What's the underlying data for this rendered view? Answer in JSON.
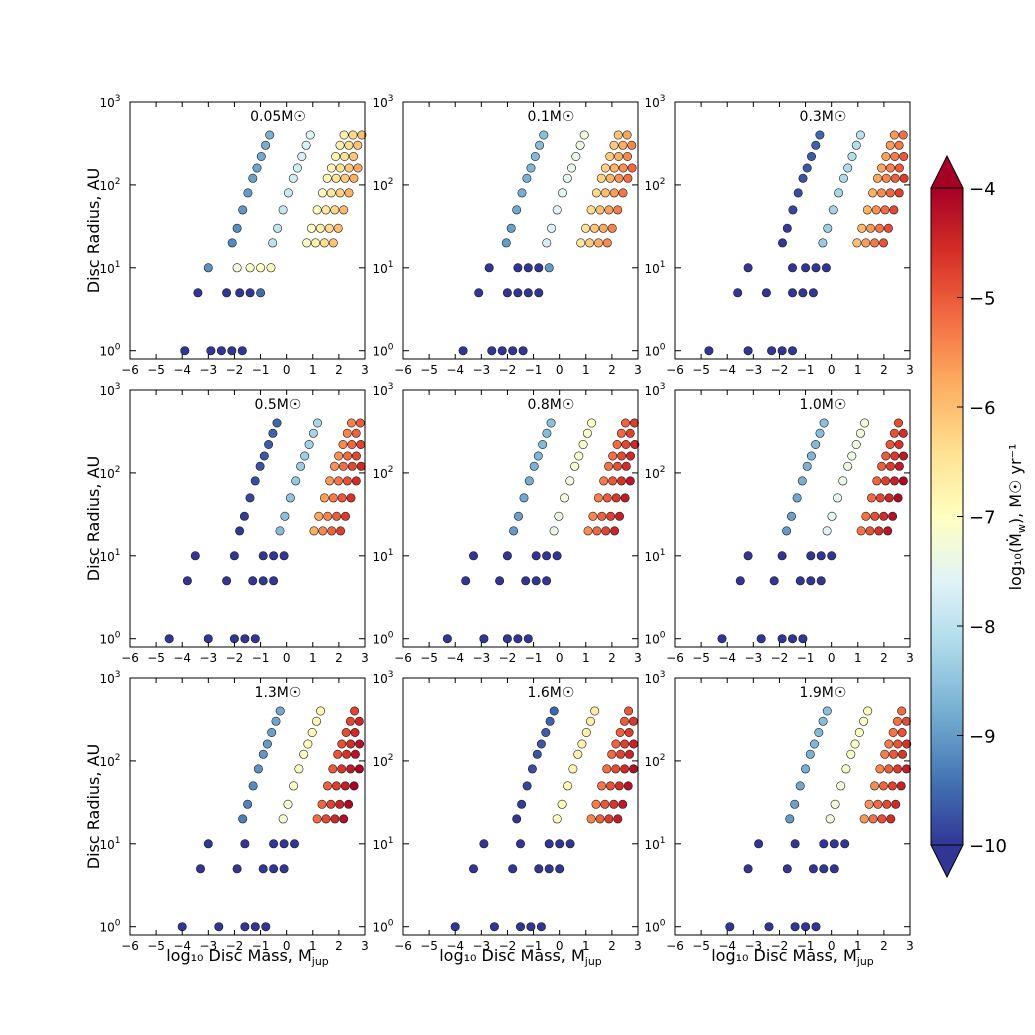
{
  "figure": {
    "x_axis_label": "log₁₀ Disc Mass, M",
    "x_axis_label_sub": "jup",
    "y_axis_label": "Disc Radius, AU"
  },
  "colorbar": {
    "label": "log₁₀(Ṁ",
    "label_sub": "w",
    "label_units": "), M☉ yr⁻¹",
    "min": -10,
    "max": -4,
    "ticks": [
      -10,
      -9,
      -8,
      -7,
      -6,
      -5,
      -4
    ],
    "tick_labels": [
      "−10",
      "−9",
      "−8",
      "−7",
      "−6",
      "−5",
      "−4"
    ],
    "colors": [
      "#313695",
      "#4575b4",
      "#74add1",
      "#abd9e9",
      "#e0f3f8",
      "#ffffbf",
      "#fee090",
      "#fdae61",
      "#f46d43",
      "#d73027",
      "#a50026"
    ]
  },
  "chart_data": [
    {
      "type": "scatter",
      "title": "0.05M☉",
      "shift": 0.0,
      "levels": [
        -9.2,
        -8.0,
        -7.1
      ],
      "low": [
        [
          -3.9,
          1,
          -10
        ],
        [
          -2.9,
          1,
          -10
        ],
        [
          -2.5,
          1,
          -10
        ],
        [
          -2.1,
          1,
          -10
        ],
        [
          -1.7,
          1,
          -10
        ],
        [
          -3.4,
          5,
          -10
        ],
        [
          -2.3,
          5,
          -10
        ],
        [
          -1.8,
          5,
          -10
        ],
        [
          -1.4,
          5,
          -10
        ],
        [
          -1.0,
          5,
          -9.5
        ],
        [
          -3.0,
          10,
          -9.1
        ],
        [
          -1.9,
          10,
          -7.3
        ],
        [
          -1.4,
          10,
          -7.1
        ],
        [
          -1.0,
          10,
          -7.0
        ],
        [
          -0.6,
          10,
          -6.9
        ]
      ]
    },
    {
      "type": "scatter",
      "title": "0.1M☉",
      "shift": 0.1,
      "levels": [
        -9.0,
        -7.7,
        -6.5
      ],
      "low": [
        [
          -3.7,
          1,
          -10
        ],
        [
          -2.6,
          1,
          -10
        ],
        [
          -2.2,
          1,
          -10
        ],
        [
          -1.8,
          1,
          -10
        ],
        [
          -1.4,
          1,
          -10
        ],
        [
          -3.1,
          5,
          -10
        ],
        [
          -2.0,
          5,
          -10
        ],
        [
          -1.6,
          5,
          -10
        ],
        [
          -1.2,
          5,
          -10
        ],
        [
          -0.8,
          5,
          -10
        ],
        [
          -2.7,
          10,
          -10
        ],
        [
          -1.6,
          10,
          -10
        ],
        [
          -1.2,
          10,
          -10
        ],
        [
          -0.8,
          10,
          -10
        ],
        [
          -0.4,
          10,
          -9.0
        ]
      ]
    },
    {
      "type": "scatter",
      "title": "0.3M☉",
      "shift": 0.5,
      "levels": [
        -10,
        -8.4,
        -6.0
      ],
      "low": [
        [
          -4.7,
          1,
          -10
        ],
        [
          -3.2,
          1,
          -10
        ],
        [
          -2.3,
          1,
          -10
        ],
        [
          -1.9,
          1,
          -10
        ],
        [
          -1.5,
          1,
          -10
        ],
        [
          -3.6,
          5,
          -10
        ],
        [
          -2.5,
          5,
          -10
        ],
        [
          -1.5,
          5,
          -10
        ],
        [
          -1.1,
          5,
          -10
        ],
        [
          -0.7,
          5,
          -10
        ],
        [
          -3.2,
          10,
          -10
        ],
        [
          -1.5,
          10,
          -10
        ],
        [
          -1.0,
          10,
          -10
        ],
        [
          -0.6,
          10,
          -10
        ],
        [
          -0.2,
          10,
          -10
        ]
      ]
    },
    {
      "type": "scatter",
      "title": "0.5M☉",
      "shift": 0.7,
      "levels": [
        -10,
        -8.6,
        -5.8
      ],
      "low": [
        [
          -4.5,
          1,
          -10
        ],
        [
          -3.0,
          1,
          -10
        ],
        [
          -2.0,
          1,
          -10
        ],
        [
          -1.6,
          1,
          -10
        ],
        [
          -1.2,
          1,
          -10
        ],
        [
          -3.8,
          5,
          -10
        ],
        [
          -2.3,
          5,
          -10
        ],
        [
          -1.3,
          5,
          -10
        ],
        [
          -0.9,
          5,
          -10
        ],
        [
          -0.5,
          5,
          -10
        ],
        [
          -3.5,
          10,
          -10
        ],
        [
          -2.0,
          10,
          -10
        ],
        [
          -0.9,
          10,
          -10
        ],
        [
          -0.5,
          10,
          -10
        ],
        [
          -0.1,
          10,
          -10
        ]
      ]
    },
    {
      "type": "scatter",
      "title": "0.8M☉",
      "shift": 0.8,
      "levels": [
        -9.0,
        -7.4,
        -5.5
      ],
      "low": [
        [
          -4.3,
          1,
          -10
        ],
        [
          -2.9,
          1,
          -10
        ],
        [
          -2.0,
          1,
          -10
        ],
        [
          -1.6,
          1,
          -10
        ],
        [
          -1.2,
          1,
          -10
        ],
        [
          -3.6,
          5,
          -10
        ],
        [
          -2.3,
          5,
          -10
        ],
        [
          -1.3,
          5,
          -10
        ],
        [
          -0.9,
          5,
          -10
        ],
        [
          -0.5,
          5,
          -10
        ],
        [
          -3.3,
          10,
          -10
        ],
        [
          -2.0,
          10,
          -10
        ],
        [
          -0.9,
          10,
          -10
        ],
        [
          -0.5,
          10,
          -10
        ],
        [
          -0.1,
          10,
          -10
        ]
      ]
    },
    {
      "type": "scatter",
      "title": "1.0M☉",
      "shift": 0.9,
      "levels": [
        -9.0,
        -7.6,
        -5.3
      ],
      "low": [
        [
          -4.2,
          1,
          -10
        ],
        [
          -2.7,
          1,
          -10
        ],
        [
          -1.9,
          1,
          -10
        ],
        [
          -1.5,
          1,
          -10
        ],
        [
          -1.1,
          1,
          -10
        ],
        [
          -3.5,
          5,
          -10
        ],
        [
          -2.2,
          5,
          -10
        ],
        [
          -1.2,
          5,
          -10
        ],
        [
          -0.8,
          5,
          -10
        ],
        [
          -0.4,
          5,
          -10
        ],
        [
          -3.2,
          10,
          -10
        ],
        [
          -1.9,
          10,
          -10
        ],
        [
          -0.8,
          10,
          -10
        ],
        [
          -0.4,
          10,
          -10
        ],
        [
          0.0,
          10,
          -10
        ]
      ]
    },
    {
      "type": "scatter",
      "title": "1.3M☉",
      "shift": 1.0,
      "levels": [
        -9.3,
        -7.2,
        -5.2
      ],
      "low": [
        [
          -4.0,
          1,
          -10
        ],
        [
          -2.6,
          1,
          -10
        ],
        [
          -1.6,
          1,
          -10
        ],
        [
          -1.2,
          1,
          -10
        ],
        [
          -0.8,
          1,
          -10
        ],
        [
          -3.3,
          5,
          -10
        ],
        [
          -1.9,
          5,
          -10
        ],
        [
          -0.9,
          5,
          -10
        ],
        [
          -0.5,
          5,
          -10
        ],
        [
          -0.1,
          5,
          -10
        ],
        [
          -3.0,
          10,
          -10
        ],
        [
          -1.6,
          10,
          -10
        ],
        [
          -0.5,
          10,
          -10
        ],
        [
          -0.1,
          10,
          -10
        ],
        [
          0.3,
          10,
          -10
        ]
      ]
    },
    {
      "type": "scatter",
      "title": "1.6M☉",
      "shift": 1.1,
      "levels": [
        -10,
        -7.0,
        -5.4
      ],
      "low": [
        [
          -4.0,
          1,
          -10
        ],
        [
          -2.5,
          1,
          -10
        ],
        [
          -1.5,
          1,
          -10
        ],
        [
          -1.1,
          1,
          -10
        ],
        [
          -0.7,
          1,
          -10
        ],
        [
          -3.3,
          5,
          -10
        ],
        [
          -1.8,
          5,
          -10
        ],
        [
          -0.8,
          5,
          -10
        ],
        [
          -0.4,
          5,
          -10
        ],
        [
          0.0,
          5,
          -10
        ],
        [
          -2.9,
          10,
          -10
        ],
        [
          -1.5,
          10,
          -10
        ],
        [
          -0.4,
          10,
          -10
        ],
        [
          0.0,
          10,
          -10
        ],
        [
          0.4,
          10,
          -10
        ]
      ]
    },
    {
      "type": "scatter",
      "title": "1.9M☉",
      "shift": 1.2,
      "levels": [
        -9.0,
        -7.3,
        -5.6
      ],
      "low": [
        [
          -3.9,
          1,
          -10
        ],
        [
          -2.4,
          1,
          -10
        ],
        [
          -1.4,
          1,
          -10
        ],
        [
          -1.0,
          1,
          -10
        ],
        [
          -0.6,
          1,
          -10
        ],
        [
          -3.2,
          5,
          -10
        ],
        [
          -1.7,
          5,
          -10
        ],
        [
          -0.7,
          5,
          -10
        ],
        [
          -0.3,
          5,
          -10
        ],
        [
          0.1,
          5,
          -10
        ],
        [
          -2.8,
          10,
          -10
        ],
        [
          -1.4,
          10,
          -10
        ],
        [
          -0.3,
          10,
          -10
        ],
        [
          0.1,
          10,
          -10
        ],
        [
          0.5,
          10,
          -10
        ]
      ]
    }
  ],
  "axes": {
    "xlim": [
      -6,
      3
    ],
    "ylim_log10": [
      -0.1,
      3
    ],
    "x_ticks": [
      -6,
      -5,
      -4,
      -3,
      -2,
      -1,
      0,
      1,
      2,
      3
    ],
    "x_tick_labels": [
      "−6",
      "−5",
      "−4",
      "−3",
      "−2",
      "−1",
      "0",
      "1",
      "2",
      "3"
    ],
    "y_ticks_log10": [
      0,
      1,
      2,
      3
    ],
    "y_tick_base": "10",
    "y_tick_exponents": [
      "0",
      "1",
      "2",
      "3"
    ]
  }
}
